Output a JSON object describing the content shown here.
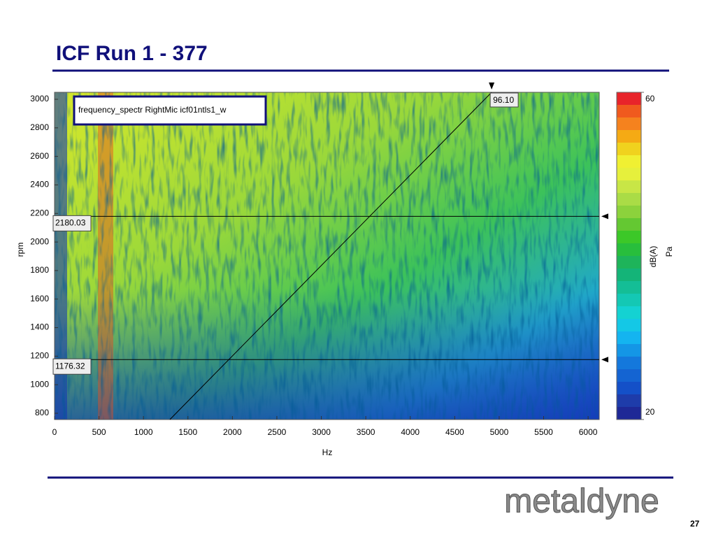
{
  "title": "ICF Run 1 - 377",
  "page_number": "27",
  "logo": "metaldyne",
  "chart_data": {
    "type": "spectrogram",
    "legend_label": "frequency_spectr RightMic  icf01ntls1_w",
    "xlabel": "Hz",
    "ylabel": "rpm",
    "xlim": [
      0,
      6125
    ],
    "ylim": [
      756,
      3049
    ],
    "xticks": [
      0,
      500,
      1000,
      1500,
      2000,
      2500,
      3000,
      3500,
      4000,
      4500,
      5000,
      5500,
      6000
    ],
    "yticks": [
      800,
      1000,
      1200,
      1400,
      1600,
      1800,
      2000,
      2200,
      2400,
      2600,
      2800,
      3000
    ],
    "rpm_cursors": [
      2180.03,
      1176.32
    ],
    "order_line": {
      "x": [
        1297,
        4915
      ],
      "y": [
        756,
        3049
      ]
    },
    "order_label": "96.10",
    "colorbar": {
      "label": "dB(A)",
      "unit": "Pa",
      "clim": [
        20,
        60
      ],
      "ticks": [
        20,
        60
      ],
      "colors": [
        "#e8242a",
        "#f05a1e",
        "#f5821e",
        "#f5aa14",
        "#f0d21e",
        "#f0f032",
        "#e6f03c",
        "#c8e646",
        "#aadc46",
        "#8cd23c",
        "#64c832",
        "#3cc828",
        "#28be3c",
        "#1eb45a",
        "#14b478",
        "#14be96",
        "#14c8b4",
        "#14d2d2",
        "#14c8e6",
        "#14b4f0",
        "#1496e6",
        "#1478dc",
        "#1464d2",
        "#1450c8",
        "#1e3caa",
        "#1e2896"
      ]
    }
  }
}
